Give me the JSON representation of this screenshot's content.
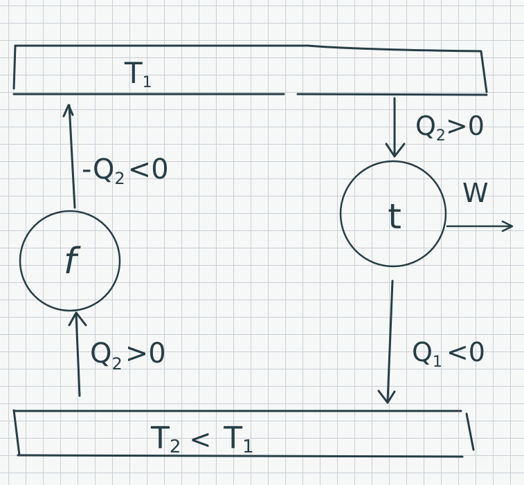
{
  "top_reservoir": {
    "label": "T",
    "subscript": "1"
  },
  "bottom_reservoir": {
    "label": "T",
    "subscript": "2",
    "relation": "<",
    "compare_label": "T",
    "compare_subscript": "1"
  },
  "fridge": {
    "symbol": "f"
  },
  "engine": {
    "symbol": "t"
  },
  "labels": {
    "fridge_top_heat": {
      "prefix": "-Q",
      "subscript": "2",
      "suffix": "<0"
    },
    "fridge_bottom_heat": {
      "prefix": "Q",
      "subscript": "2",
      "suffix": ">0"
    },
    "engine_in_heat": {
      "prefix": "Q",
      "subscript": "2",
      "suffix": ">0"
    },
    "engine_out_heat": {
      "prefix": "Q",
      "subscript": "1",
      "suffix": "<0"
    },
    "work": "W"
  },
  "colors": {
    "ink": "#263d45",
    "grid": "#c9cfd3",
    "paper": "#f6f7f7"
  }
}
